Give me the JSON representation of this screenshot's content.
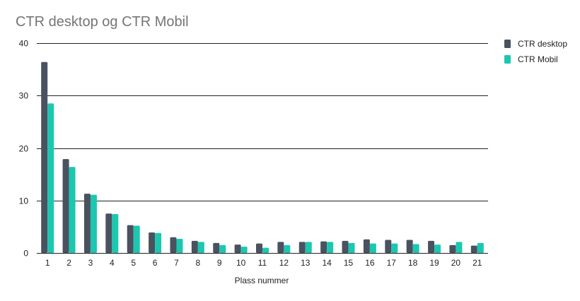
{
  "chart_data": {
    "type": "bar",
    "title": "CTR desktop og CTR Mobil",
    "xlabel": "Plass nummer",
    "ylabel": "",
    "categories": [
      "1",
      "2",
      "3",
      "4",
      "5",
      "6",
      "7",
      "8",
      "9",
      "10",
      "11",
      "12",
      "13",
      "14",
      "15",
      "16",
      "17",
      "18",
      "19",
      "20",
      "21"
    ],
    "series": [
      {
        "name": "CTR desktop",
        "color": "#4a5260",
        "values": [
          36.4,
          17.9,
          11.3,
          7.5,
          5.3,
          3.9,
          3.0,
          2.3,
          1.9,
          1.6,
          1.8,
          2.1,
          2.1,
          2.2,
          2.3,
          2.6,
          2.5,
          2.5,
          2.3,
          1.5,
          1.4
        ]
      },
      {
        "name": "CTR Mobil",
        "color": "#1cc7b0",
        "values": [
          28.5,
          16.4,
          11.1,
          7.4,
          5.2,
          3.8,
          2.7,
          2.1,
          1.5,
          1.2,
          1.0,
          1.5,
          2.1,
          2.1,
          1.9,
          1.8,
          1.8,
          1.7,
          1.6,
          2.1,
          1.9
        ]
      }
    ],
    "yticks": [
      0,
      10,
      20,
      30,
      40
    ],
    "ylim": [
      0,
      40
    ],
    "grid": true,
    "legend": "right"
  }
}
